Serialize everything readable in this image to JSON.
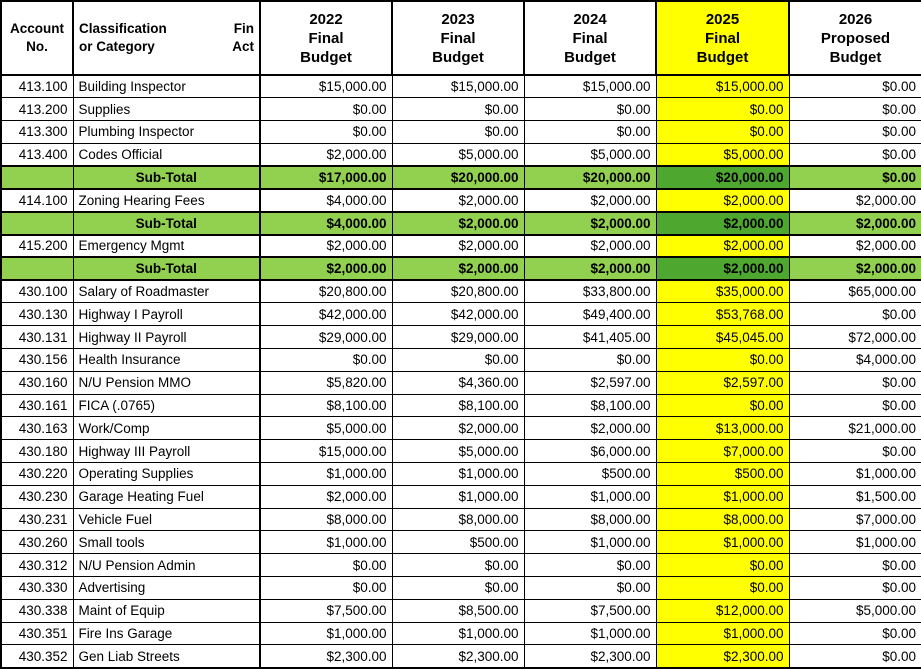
{
  "colors": {
    "highlight_column": "#FFFF00",
    "subtotal_row": "#92D050",
    "subtotal_highlight_cell": "#4EA72E",
    "grid": "#000000"
  },
  "header": {
    "account": [
      "Account",
      "No."
    ],
    "classification": [
      "Classification",
      "or Category"
    ],
    "truncated": [
      "Fin",
      "Act"
    ],
    "years": [
      {
        "label": "2022",
        "sub1": "Final",
        "sub2": "Budget",
        "highlight": false
      },
      {
        "label": "2023",
        "sub1": "Final",
        "sub2": "Budget",
        "highlight": false
      },
      {
        "label": "2024",
        "sub1": "Final",
        "sub2": "Budget",
        "highlight": false
      },
      {
        "label": "2025",
        "sub1": "Final",
        "sub2": "Budget",
        "highlight": true
      },
      {
        "label": "2026",
        "sub1": "Proposed",
        "sub2": "Budget",
        "highlight": false
      }
    ]
  },
  "rows": [
    {
      "type": "data",
      "account": "413.100",
      "label": "Building Inspector",
      "values": [
        "$15,000.00",
        "$15,000.00",
        "$15,000.00",
        "$15,000.00",
        "$0.00"
      ]
    },
    {
      "type": "data",
      "account": "413.200",
      "label": "Supplies",
      "values": [
        "$0.00",
        "$0.00",
        "$0.00",
        "$0.00",
        "$0.00"
      ]
    },
    {
      "type": "data",
      "account": "413.300",
      "label": "Plumbing Inspector",
      "values": [
        "$0.00",
        "$0.00",
        "$0.00",
        "$0.00",
        "$0.00"
      ]
    },
    {
      "type": "data",
      "account": "413.400",
      "label": "Codes Official",
      "values": [
        "$2,000.00",
        "$5,000.00",
        "$5,000.00",
        "$5,000.00",
        "$0.00"
      ]
    },
    {
      "type": "subtotal",
      "account": "",
      "label": "Sub-Total",
      "values": [
        "$17,000.00",
        "$20,000.00",
        "$20,000.00",
        "$20,000.00",
        "$0.00"
      ]
    },
    {
      "type": "data",
      "account": "414.100",
      "label": "Zoning Hearing Fees",
      "values": [
        "$4,000.00",
        "$2,000.00",
        "$2,000.00",
        "$2,000.00",
        "$2,000.00"
      ]
    },
    {
      "type": "subtotal",
      "account": "",
      "label": "Sub-Total",
      "values": [
        "$4,000.00",
        "$2,000.00",
        "$2,000.00",
        "$2,000.00",
        "$2,000.00"
      ]
    },
    {
      "type": "data",
      "account": "415.200",
      "label": "Emergency Mgmt",
      "values": [
        "$2,000.00",
        "$2,000.00",
        "$2,000.00",
        "$2,000.00",
        "$2,000.00"
      ]
    },
    {
      "type": "subtotal",
      "account": "",
      "label": "Sub-Total",
      "values": [
        "$2,000.00",
        "$2,000.00",
        "$2,000.00",
        "$2,000.00",
        "$2,000.00"
      ]
    },
    {
      "type": "data",
      "account": "430.100",
      "label": "Salary of Roadmaster",
      "values": [
        "$20,800.00",
        "$20,800.00",
        "$33,800.00",
        "$35,000.00",
        "$65,000.00"
      ]
    },
    {
      "type": "data",
      "account": "430.130",
      "label": "Highway I Payroll",
      "values": [
        "$42,000.00",
        "$42,000.00",
        "$49,400.00",
        "$53,768.00",
        "$0.00"
      ]
    },
    {
      "type": "data",
      "account": "430.131",
      "label": "Highway II Payroll",
      "values": [
        "$29,000.00",
        "$29,000.00",
        "$41,405.00",
        "$45,045.00",
        "$72,000.00"
      ]
    },
    {
      "type": "data",
      "account": "430.156",
      "label": "Health Insurance",
      "values": [
        "$0.00",
        "$0.00",
        "$0.00",
        "$0.00",
        "$4,000.00"
      ]
    },
    {
      "type": "data",
      "account": "430.160",
      "label": "N/U Pension MMO",
      "values": [
        "$5,820.00",
        "$4,360.00",
        "$2,597.00",
        "$2,597.00",
        "$0.00"
      ]
    },
    {
      "type": "data",
      "account": "430.161",
      "label": "FICA (.0765)",
      "values": [
        "$8,100.00",
        "$8,100.00",
        "$8,100.00",
        "$0.00",
        "$0.00"
      ]
    },
    {
      "type": "data",
      "account": "430.163",
      "label": "Work/Comp",
      "values": [
        "$5,000.00",
        "$2,000.00",
        "$2,000.00",
        "$13,000.00",
        "$21,000.00"
      ]
    },
    {
      "type": "data",
      "account": "430.180",
      "label": "Highway III Payroll",
      "values": [
        "$15,000.00",
        "$5,000.00",
        "$6,000.00",
        "$7,000.00",
        "$0.00"
      ]
    },
    {
      "type": "data",
      "account": "430.220",
      "label": "Operating Supplies",
      "values": [
        "$1,000.00",
        "$1,000.00",
        "$500.00",
        "$500.00",
        "$1,000.00"
      ]
    },
    {
      "type": "data",
      "account": "430.230",
      "label": "Garage Heating Fuel",
      "values": [
        "$2,000.00",
        "$1,000.00",
        "$1,000.00",
        "$1,000.00",
        "$1,500.00"
      ]
    },
    {
      "type": "data",
      "account": "430.231",
      "label": "Vehicle Fuel",
      "values": [
        "$8,000.00",
        "$8,000.00",
        "$8,000.00",
        "$8,000.00",
        "$7,000.00"
      ]
    },
    {
      "type": "data",
      "account": "430.260",
      "label": "Small tools",
      "values": [
        "$1,000.00",
        "$500.00",
        "$1,000.00",
        "$1,000.00",
        "$1,000.00"
      ]
    },
    {
      "type": "data",
      "account": "430.312",
      "label": "N/U Pension Admin",
      "values": [
        "$0.00",
        "$0.00",
        "$0.00",
        "$0.00",
        "$0.00"
      ]
    },
    {
      "type": "data",
      "account": "430.330",
      "label": "Advertising",
      "values": [
        "$0.00",
        "$0.00",
        "$0.00",
        "$0.00",
        "$0.00"
      ]
    },
    {
      "type": "data",
      "account": "430.338",
      "label": "Maint of Equip",
      "values": [
        "$7,500.00",
        "$8,500.00",
        "$7,500.00",
        "$12,000.00",
        "$5,000.00"
      ]
    },
    {
      "type": "data",
      "account": "430.351",
      "label": "Fire Ins Garage",
      "values": [
        "$1,000.00",
        "$1,000.00",
        "$1,000.00",
        "$1,000.00",
        "$0.00"
      ]
    },
    {
      "type": "data",
      "account": "430.352",
      "label": "Gen Liab Streets",
      "values": [
        "$2,300.00",
        "$2,300.00",
        "$2,300.00",
        "$2,300.00",
        "$0.00"
      ]
    }
  ]
}
